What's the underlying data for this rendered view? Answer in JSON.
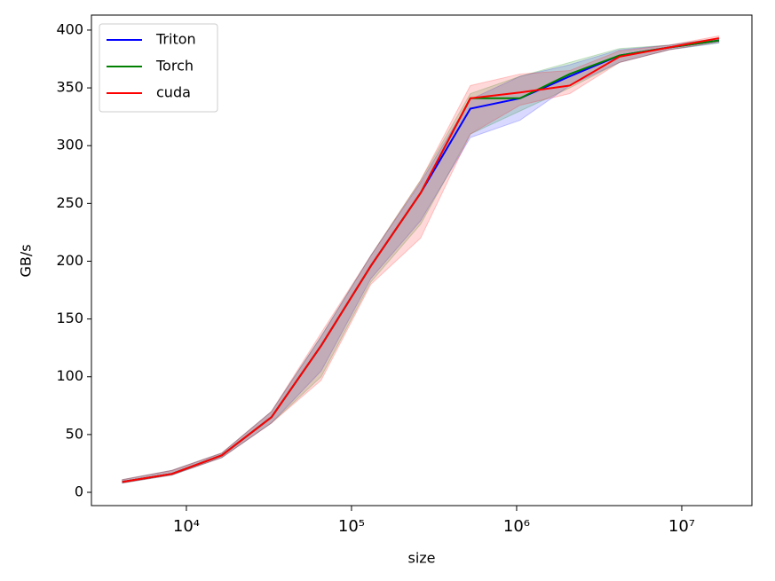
{
  "chart_data": {
    "type": "line",
    "xlabel": "size",
    "ylabel": "GB/s",
    "x": [
      4096,
      8192,
      16384,
      32768,
      65536,
      131072,
      262144,
      524288,
      1048576,
      2097152,
      4194304,
      8388608,
      16777216
    ],
    "series": [
      {
        "name": "Triton",
        "color": "#0000ff",
        "values": [
          9,
          16,
          32,
          65,
          127,
          196,
          259,
          332,
          341,
          360,
          378,
          385,
          391
        ],
        "band_low": [
          8,
          15,
          30,
          60,
          105,
          185,
          235,
          307,
          322,
          352,
          372,
          383,
          389
        ],
        "band_high": [
          11,
          19,
          34,
          70,
          135,
          205,
          268,
          340,
          360,
          370,
          383,
          387,
          393
        ]
      },
      {
        "name": "Torch",
        "color": "#008000",
        "values": [
          9,
          16,
          32,
          65,
          127,
          196,
          259,
          341,
          341,
          362,
          378,
          385,
          391
        ],
        "band_low": [
          8,
          15,
          30,
          60,
          100,
          182,
          232,
          310,
          330,
          350,
          372,
          383,
          389
        ],
        "band_high": [
          11,
          19,
          34,
          70,
          135,
          205,
          270,
          345,
          360,
          372,
          384,
          387,
          393
        ]
      },
      {
        "name": "cuda",
        "color": "#ff0000",
        "values": [
          9,
          16,
          32,
          65,
          127,
          196,
          259,
          341,
          346,
          352,
          377,
          385,
          393
        ],
        "band_low": [
          8,
          15,
          30,
          60,
          97,
          180,
          220,
          310,
          335,
          345,
          372,
          383,
          390
        ],
        "band_high": [
          11,
          19,
          34,
          70,
          138,
          205,
          270,
          352,
          362,
          365,
          382,
          387,
          395
        ]
      }
    ],
    "xscale": "log",
    "xlim": [
      2661,
      26600000
    ],
    "xticks": [
      {
        "value": 10000,
        "label": "10⁴"
      },
      {
        "value": 100000,
        "label": "10⁵"
      },
      {
        "value": 1000000,
        "label": "10⁶"
      },
      {
        "value": 10000000,
        "label": "10⁷"
      }
    ],
    "ylim": [
      -11.5,
      413
    ],
    "yticks": [
      0,
      50,
      100,
      150,
      200,
      250,
      300,
      350,
      400
    ],
    "legend": "upper left"
  }
}
